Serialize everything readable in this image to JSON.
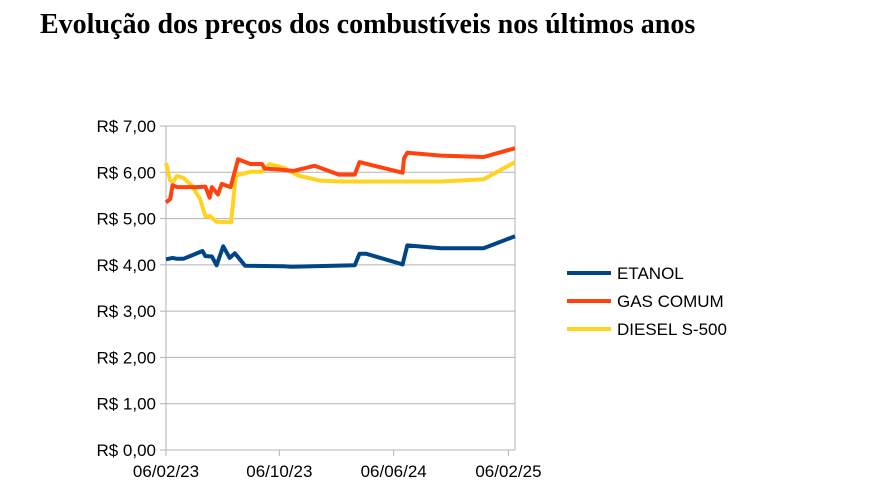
{
  "chart_data": {
    "type": "line",
    "title": "Evolução dos preços dos combustíveis nos últimos anos",
    "xlabel": "",
    "ylabel": "",
    "ylim": [
      0,
      7
    ],
    "yticks": [
      "R$ 0,00",
      "R$ 1,00",
      "R$ 2,00",
      "R$ 3,00",
      "R$ 4,00",
      "R$ 5,00",
      "R$ 6,00",
      "R$ 7,00"
    ],
    "xlim": [
      "2023-02-06",
      "2025-02-20"
    ],
    "xticks": [
      {
        "date": "2023-02-06",
        "label": "06/02/23"
      },
      {
        "date": "2023-10-06",
        "label": "06/10/23"
      },
      {
        "date": "2024-06-06",
        "label": "06/06/24"
      },
      {
        "date": "2025-02-06",
        "label": "06/02/25"
      }
    ],
    "grid": true,
    "legend": "right",
    "series": [
      {
        "name": "ETANOL",
        "color": "#004586",
        "points": [
          [
            "2023-02-06",
            4.12
          ],
          [
            "2023-02-20",
            4.15
          ],
          [
            "2023-03-01",
            4.13
          ],
          [
            "2023-03-15",
            4.13
          ],
          [
            "2023-04-01",
            4.2
          ],
          [
            "2023-04-25",
            4.3
          ],
          [
            "2023-05-01",
            4.19
          ],
          [
            "2023-05-15",
            4.18
          ],
          [
            "2023-05-25",
            3.99
          ],
          [
            "2023-06-08",
            4.4
          ],
          [
            "2023-06-22",
            4.15
          ],
          [
            "2023-07-03",
            4.25
          ],
          [
            "2023-07-25",
            3.98
          ],
          [
            "2023-10-15",
            3.97
          ],
          [
            "2023-11-01",
            3.96
          ],
          [
            "2024-03-15",
            3.99
          ],
          [
            "2024-03-25",
            4.24
          ],
          [
            "2024-04-08",
            4.24
          ],
          [
            "2024-06-25",
            4.01
          ],
          [
            "2024-07-05",
            4.42
          ],
          [
            "2024-09-15",
            4.36
          ],
          [
            "2024-12-15",
            4.36
          ],
          [
            "2025-02-20",
            4.62
          ]
        ]
      },
      {
        "name": "GAS COMUM",
        "color": "#ff420e",
        "points": [
          [
            "2023-02-06",
            5.35
          ],
          [
            "2023-02-15",
            5.42
          ],
          [
            "2023-02-20",
            5.72
          ],
          [
            "2023-03-01",
            5.68
          ],
          [
            "2023-04-15",
            5.68
          ],
          [
            "2023-05-01",
            5.69
          ],
          [
            "2023-05-10",
            5.45
          ],
          [
            "2023-05-15",
            5.68
          ],
          [
            "2023-05-28",
            5.52
          ],
          [
            "2023-06-05",
            5.75
          ],
          [
            "2023-06-24",
            5.68
          ],
          [
            "2023-07-10",
            6.28
          ],
          [
            "2023-08-05",
            6.18
          ],
          [
            "2023-08-30",
            6.18
          ],
          [
            "2023-09-05",
            6.08
          ],
          [
            "2023-10-05",
            6.06
          ],
          [
            "2023-11-05",
            6.03
          ],
          [
            "2023-12-20",
            6.14
          ],
          [
            "2024-02-10",
            5.95
          ],
          [
            "2024-03-15",
            5.95
          ],
          [
            "2024-03-25",
            6.22
          ],
          [
            "2024-06-25",
            5.99
          ],
          [
            "2024-06-28",
            6.3
          ],
          [
            "2024-07-05",
            6.42
          ],
          [
            "2024-09-15",
            6.36
          ],
          [
            "2024-12-15",
            6.33
          ],
          [
            "2025-02-20",
            6.52
          ]
        ]
      },
      {
        "name": "DIESEL S-500",
        "color": "#ffd320",
        "points": [
          [
            "2023-02-06",
            6.2
          ],
          [
            "2023-02-15",
            5.82
          ],
          [
            "2023-02-22",
            5.8
          ],
          [
            "2023-03-01",
            5.92
          ],
          [
            "2023-03-15",
            5.88
          ],
          [
            "2023-04-01",
            5.72
          ],
          [
            "2023-04-20",
            5.42
          ],
          [
            "2023-05-01",
            5.05
          ],
          [
            "2023-05-10",
            5.06
          ],
          [
            "2023-05-25",
            4.93
          ],
          [
            "2023-06-25",
            4.92
          ],
          [
            "2023-07-05",
            5.93
          ],
          [
            "2023-08-05",
            6.01
          ],
          [
            "2023-08-30",
            6.01
          ],
          [
            "2023-09-15",
            6.18
          ],
          [
            "2023-10-15",
            6.1
          ],
          [
            "2023-11-15",
            5.93
          ],
          [
            "2023-12-31",
            5.82
          ],
          [
            "2024-02-15",
            5.8
          ],
          [
            "2024-09-15",
            5.8
          ],
          [
            "2024-12-15",
            5.85
          ],
          [
            "2025-02-20",
            6.22
          ]
        ]
      }
    ]
  }
}
